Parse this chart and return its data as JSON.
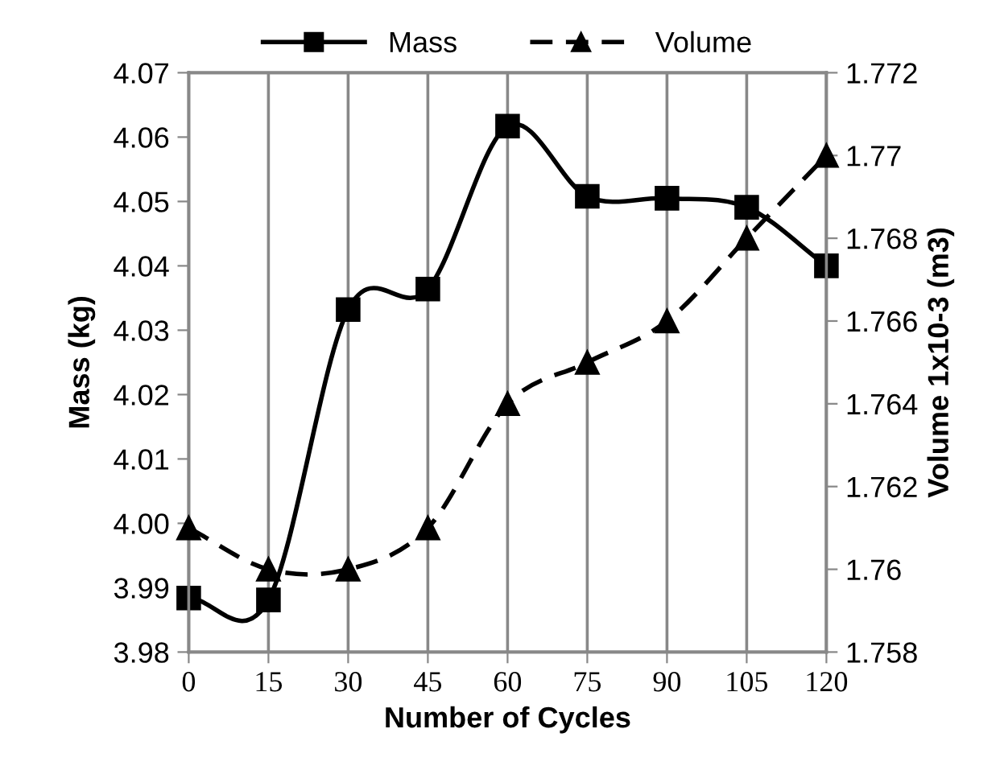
{
  "chart_data": {
    "type": "line",
    "xlabel": "Number of Cycles",
    "ylabel": "Mass (kg)",
    "y2label": "Volume 1x10-3 (m3)",
    "x": [
      0,
      15,
      30,
      45,
      60,
      75,
      90,
      105,
      120
    ],
    "series": [
      {
        "name": "Mass",
        "color": "#000000",
        "marker": "square",
        "line_style": "solid",
        "values": [
          3.9884,
          3.9881,
          4.0332,
          4.0364,
          4.0617,
          4.0508,
          4.0505,
          4.0491,
          4.04
        ]
      },
      {
        "name": "Volume",
        "color": "#000000",
        "marker": "triangle",
        "line_style": "dashed",
        "axis": "y2",
        "values": [
          1.761,
          1.76,
          1.76,
          1.761,
          1.764,
          1.765,
          1.766,
          1.768,
          1.77
        ]
      }
    ],
    "xlim": [
      0,
      120
    ],
    "xticks": [
      0,
      15,
      30,
      45,
      60,
      75,
      90,
      105,
      120
    ],
    "ylim": [
      3.98,
      4.07
    ],
    "yticks": [
      {
        "value": 3.98,
        "label": "3.98"
      },
      {
        "value": 3.99,
        "label": "3.99"
      },
      {
        "value": 4.0,
        "label": "4.00"
      },
      {
        "value": 4.01,
        "label": "4.01"
      },
      {
        "value": 4.02,
        "label": "4.02"
      },
      {
        "value": 4.03,
        "label": "4.03"
      },
      {
        "value": 4.04,
        "label": "4.04"
      },
      {
        "value": 4.05,
        "label": "4.05"
      },
      {
        "value": 4.06,
        "label": "4.06"
      },
      {
        "value": 4.07,
        "label": "4.07"
      }
    ],
    "y2lim": [
      1.758,
      1.772
    ],
    "y2ticks": [
      1.758,
      1.76,
      1.762,
      1.764,
      1.766,
      1.768,
      1.77,
      1.772
    ],
    "grid": "x",
    "legend": "top"
  }
}
